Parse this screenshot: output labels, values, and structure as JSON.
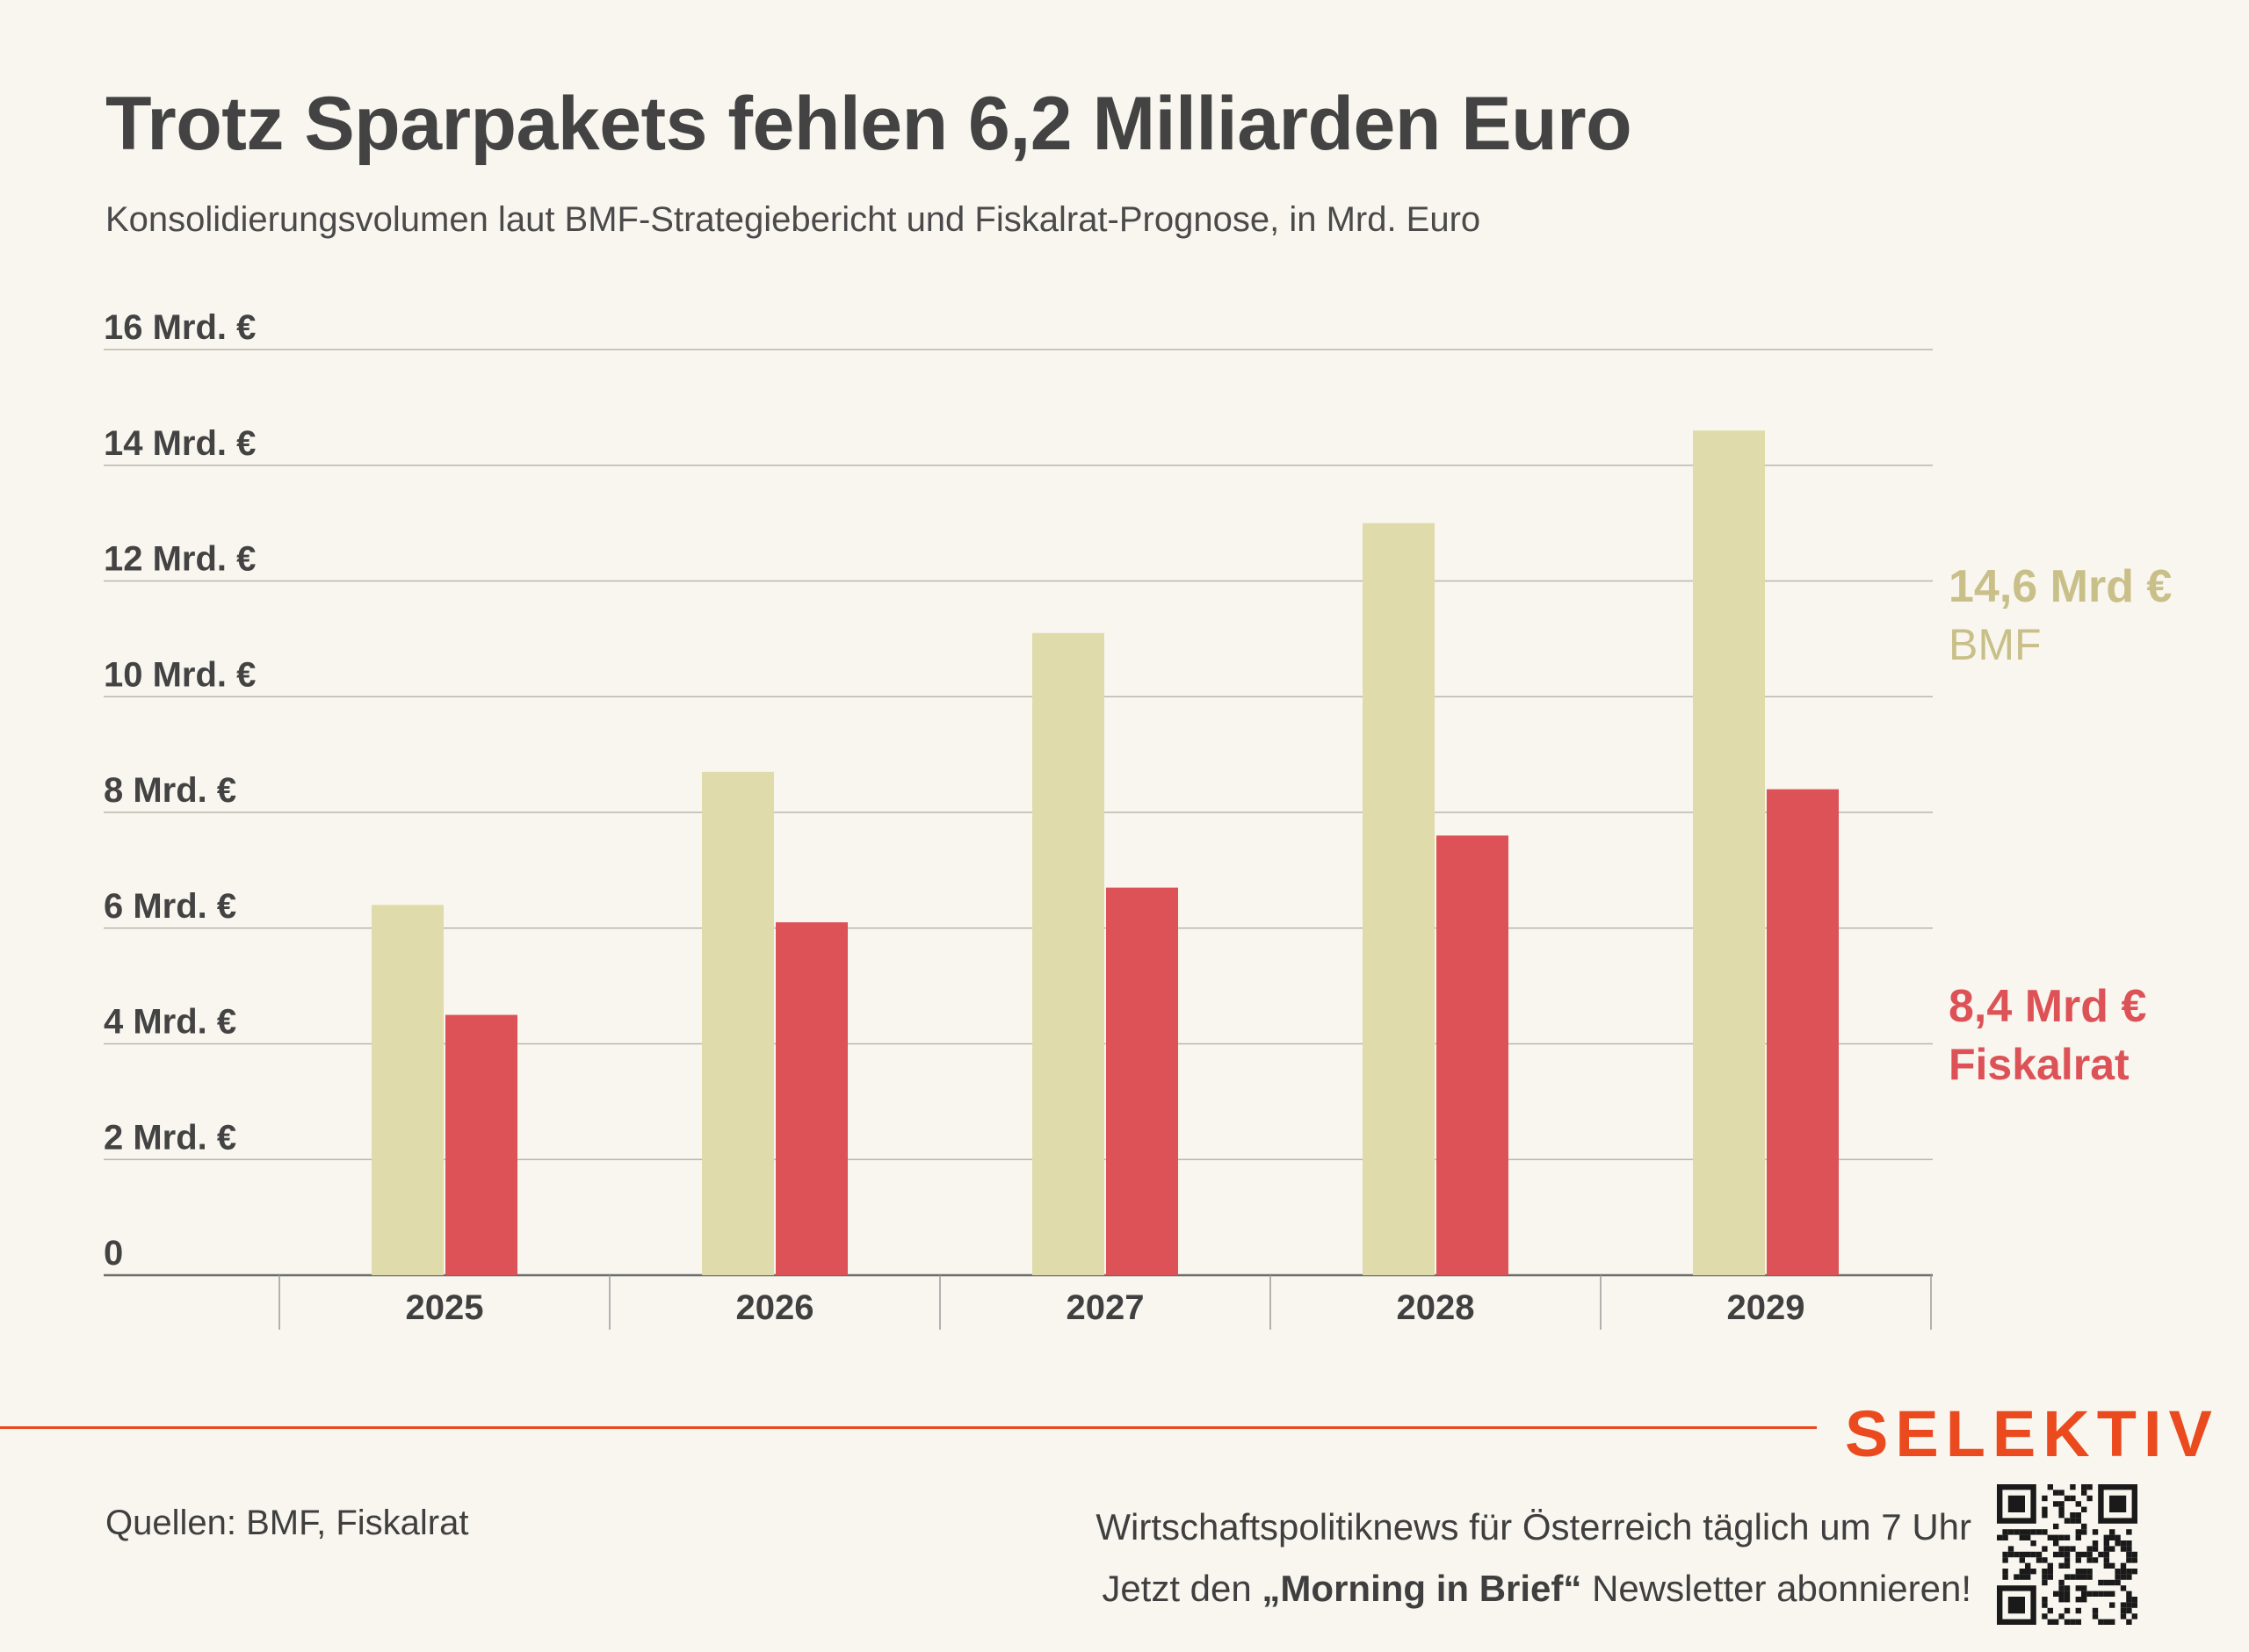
{
  "title": "Trotz Sparpakets fehlen 6,2 Milliarden Euro",
  "subtitle": "Konsolidierungsvolumen laut BMF-Strategiebericht und Fiskalrat-Prognose, in Mrd. Euro",
  "chart_data": {
    "type": "bar",
    "categories": [
      "2025",
      "2026",
      "2027",
      "2028",
      "2029"
    ],
    "series": [
      {
        "name": "BMF",
        "values": [
          6.4,
          8.7,
          11.1,
          13.0,
          14.6
        ],
        "color": "#e0dbab"
      },
      {
        "name": "Fiskalrat",
        "values": [
          4.5,
          6.1,
          6.7,
          7.6,
          8.4
        ],
        "color": "#dd5257"
      }
    ],
    "ylim": [
      0,
      16
    ],
    "yticks": [
      0,
      2,
      4,
      6,
      8,
      10,
      12,
      14,
      16
    ],
    "ytick_labels": [
      "0",
      "2 Mrd. €",
      "4 Mrd. €",
      "6 Mrd. €",
      "8 Mrd. €",
      "10 Mrd. €",
      "12 Mrd. €",
      "14 Mrd. €",
      "16 Mrd. €"
    ],
    "grid": true,
    "end_labels": [
      {
        "value": "14,6 Mrd €",
        "series": "BMF"
      },
      {
        "value": "8,4 Mrd €",
        "series": "Fiskalrat"
      }
    ]
  },
  "brand": {
    "logo": "SELEKTIV",
    "accent": "#ea4a1e"
  },
  "footer": {
    "source": "Quellen: BMF, Fiskalrat",
    "promo_line1": "Wirtschaftspolitiknews für Österreich täglich um 7 Uhr",
    "promo_line2_pre": "Jetzt den ",
    "promo_line2_bold": "„Morning in Brief“",
    "promo_line2_post": " Newsletter abonnieren!"
  },
  "icons": {
    "qr": "qr-code-icon"
  }
}
